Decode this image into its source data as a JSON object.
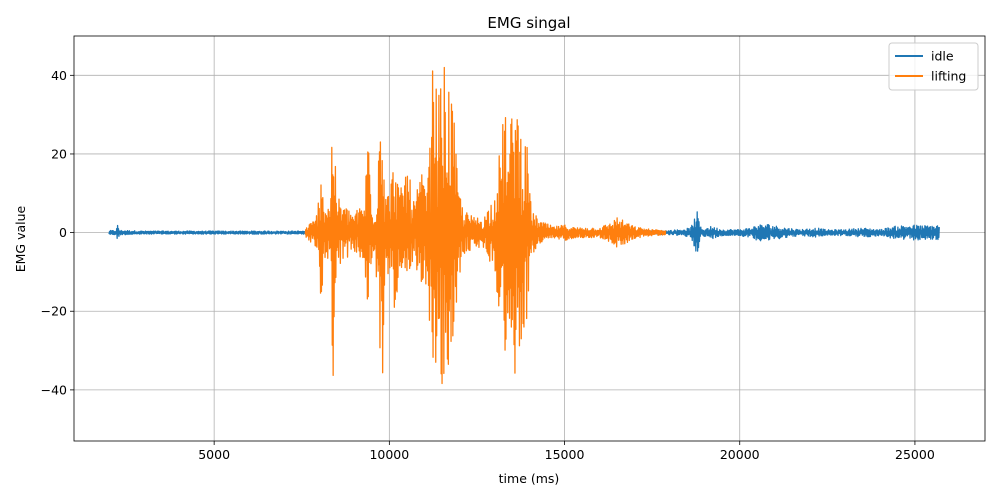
{
  "chart_data": {
    "type": "line",
    "title": "EMG singal",
    "xlabel": "time (ms)",
    "ylabel": "EMG value",
    "xlim": [
      1000,
      27000
    ],
    "ylim": [
      -53,
      50
    ],
    "xticks": [
      5000,
      10000,
      15000,
      20000,
      25000
    ],
    "yticks": [
      -40,
      -20,
      0,
      20,
      40
    ],
    "xtick_labels": [
      "5000",
      "10000",
      "15000",
      "20000",
      "25000"
    ],
    "ytick_labels": [
      "−40",
      "−20",
      "0",
      "20",
      "40"
    ],
    "grid": true,
    "legend_position": "top-right",
    "series": [
      {
        "name": "idle",
        "color": "#1f77b4",
        "x_range": [
          2000,
          25700
        ],
        "envelope": [
          [
            2000,
            0.5
          ],
          [
            2200,
            0.6
          ],
          [
            2250,
            2.2
          ],
          [
            2300,
            0.6
          ],
          [
            3000,
            0.4
          ],
          [
            5000,
            0.4
          ],
          [
            7000,
            0.4
          ],
          [
            7600,
            0.4
          ],
          [
            17900,
            0.5
          ],
          [
            18300,
            0.8
          ],
          [
            18600,
            1.2
          ],
          [
            18780,
            5.5
          ],
          [
            18900,
            1.0
          ],
          [
            19200,
            1.6
          ],
          [
            19500,
            0.8
          ],
          [
            20000,
            0.8
          ],
          [
            20300,
            1.2
          ],
          [
            20500,
            2.0
          ],
          [
            20800,
            2.2
          ],
          [
            21200,
            1.4
          ],
          [
            21700,
            0.8
          ],
          [
            22200,
            1.2
          ],
          [
            22500,
            0.7
          ],
          [
            23000,
            0.8
          ],
          [
            23500,
            1.2
          ],
          [
            24000,
            0.8
          ],
          [
            24400,
            1.6
          ],
          [
            24800,
            2.0
          ],
          [
            25300,
            1.8
          ],
          [
            25700,
            2.0
          ]
        ]
      },
      {
        "name": "lifting",
        "color": "#ff7f0e",
        "x_range": [
          7600,
          17900
        ],
        "envelope": [
          [
            7600,
            1.0
          ],
          [
            7750,
            2.5
          ],
          [
            7900,
            3.5
          ],
          [
            8000,
            10
          ],
          [
            8060,
            25
          ],
          [
            8120,
            8
          ],
          [
            8300,
            7
          ],
          [
            8400,
            38
          ],
          [
            8480,
            10
          ],
          [
            8700,
            7
          ],
          [
            9000,
            5
          ],
          [
            9300,
            8
          ],
          [
            9400,
            31
          ],
          [
            9480,
            8
          ],
          [
            9600,
            6
          ],
          [
            9740,
            35
          ],
          [
            9800,
            43
          ],
          [
            9870,
            12
          ],
          [
            10000,
            10
          ],
          [
            10150,
            20
          ],
          [
            10300,
            10
          ],
          [
            10500,
            18
          ],
          [
            10700,
            8
          ],
          [
            10900,
            15
          ],
          [
            11100,
            13
          ],
          [
            11250,
            45
          ],
          [
            11350,
            38
          ],
          [
            11450,
            35
          ],
          [
            11530,
            48
          ],
          [
            11620,
            35
          ],
          [
            11750,
            40
          ],
          [
            11850,
            28
          ],
          [
            11950,
            14
          ],
          [
            12100,
            6
          ],
          [
            12400,
            4
          ],
          [
            12700,
            4
          ],
          [
            13000,
            10
          ],
          [
            13200,
            25
          ],
          [
            13320,
            34
          ],
          [
            13400,
            18
          ],
          [
            13550,
            40
          ],
          [
            13700,
            30
          ],
          [
            13800,
            26
          ],
          [
            13930,
            22
          ],
          [
            14050,
            6
          ],
          [
            14300,
            3
          ],
          [
            14700,
            1.5
          ],
          [
            15000,
            2
          ],
          [
            15300,
            1.3
          ],
          [
            15700,
            1.3
          ],
          [
            16000,
            1.3
          ],
          [
            16300,
            2.5
          ],
          [
            16500,
            4
          ],
          [
            16700,
            3
          ],
          [
            17000,
            1.5
          ],
          [
            17500,
            0.8
          ],
          [
            17900,
            0.6
          ]
        ]
      }
    ]
  }
}
